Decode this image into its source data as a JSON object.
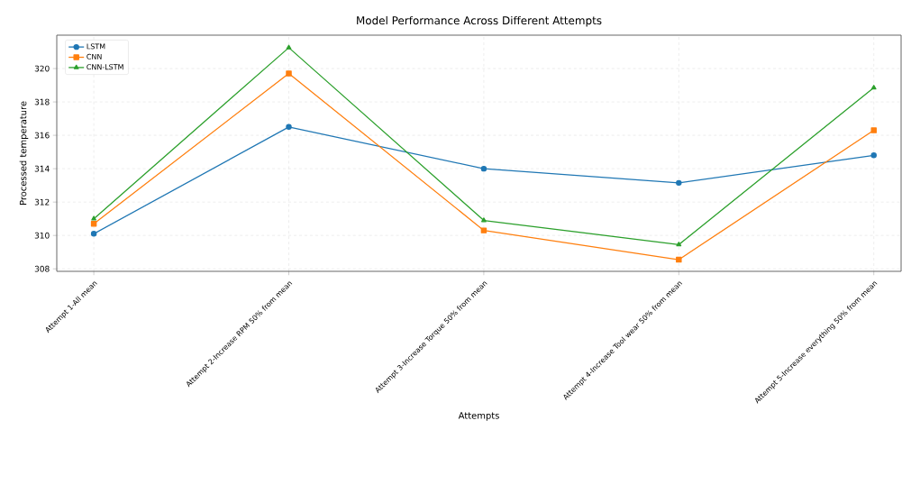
{
  "chart_data": {
    "type": "line",
    "title": "Model Performance Across Different Attempts",
    "xlabel": "Attempts",
    "ylabel": "Processed temperature",
    "categories": [
      "Attempt 1-All mean",
      "Attempt 2-Increase RPM 50% from mean",
      "Attempt 3-Increase Torque 50% from mean",
      "Attempt 4-Increase Tool wear 50% from mean",
      "Attempt 5-Increase everything 50% from mean"
    ],
    "series": [
      {
        "name": "LSTM",
        "color": "#1f77b4",
        "marker": "circle",
        "values": [
          310.1,
          316.5,
          314.0,
          313.15,
          314.8
        ]
      },
      {
        "name": "CNN",
        "color": "#ff7f0e",
        "marker": "square",
        "values": [
          310.7,
          319.7,
          310.3,
          308.55,
          316.3
        ]
      },
      {
        "name": "CNN-LSTM",
        "color": "#2ca02c",
        "marker": "triangle",
        "values": [
          311.0,
          321.25,
          310.9,
          309.45,
          318.85
        ]
      }
    ],
    "ylim": [
      307.85,
      322
    ],
    "yticks": [
      308,
      310,
      312,
      314,
      316,
      318,
      320
    ],
    "grid": true,
    "legend": "top left",
    "line_style": "solid"
  }
}
